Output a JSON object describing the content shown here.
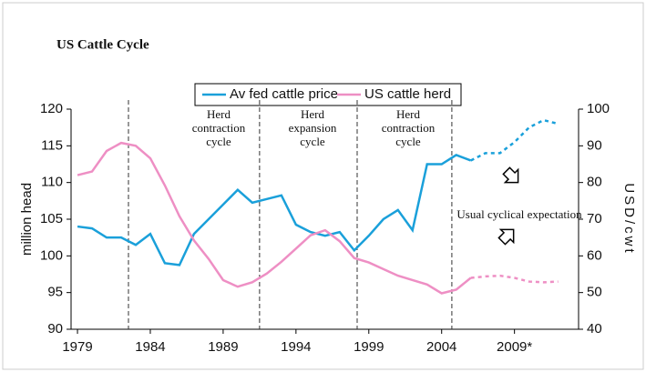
{
  "chart_data": {
    "type": "line",
    "title": "US Cattle Cycle",
    "x": [
      1979,
      1980,
      1981,
      1982,
      1983,
      1984,
      1985,
      1986,
      1987,
      1988,
      1989,
      1990,
      1991,
      1992,
      1993,
      1994,
      1995,
      1996,
      1997,
      1998,
      1999,
      2000,
      2001,
      2002,
      2003,
      2004,
      2005,
      2006,
      2007,
      2008,
      2009,
      2010,
      2011,
      2012
    ],
    "series": [
      {
        "name": "Av fed cattle price",
        "color": "#1aa0da",
        "axis": "y2",
        "dashed_from": 2006,
        "values": [
          68,
          67.5,
          65,
          65,
          63,
          66,
          58,
          57.5,
          66,
          70,
          74,
          78,
          74.5,
          75.5,
          76.5,
          68.5,
          66.5,
          65.5,
          66.5,
          61.5,
          65.5,
          70,
          72.5,
          67,
          85,
          85,
          87.5,
          86,
          88,
          88,
          91,
          95,
          97,
          96
        ]
      },
      {
        "name": "US cattle herd",
        "color": "#ee8fc4",
        "dashed_from": 2006,
        "values": [
          111,
          111.5,
          114.3,
          115.4,
          115,
          113.3,
          109.6,
          105.4,
          102.1,
          99.6,
          96.7,
          95.8,
          96.4,
          97.6,
          99.2,
          101,
          102.8,
          103.5,
          102,
          99.7,
          99.1,
          98.2,
          97.3,
          96.7,
          96.1,
          94.9,
          95.4,
          97.0,
          97.2,
          97.3,
          97.0,
          96.5,
          96.4,
          96.5
        ]
      }
    ],
    "xlim": [
      1978.56,
      2013.4
    ],
    "xticks": [
      1979,
      1984,
      1989,
      1994,
      1999,
      2004,
      {
        "value": 2009,
        "label": "2009*"
      }
    ],
    "ylim": [
      90,
      120
    ],
    "yticks": [
      90,
      95,
      100,
      105,
      110,
      115,
      120
    ],
    "y2lim": [
      40,
      100
    ],
    "y2ticks": [
      40,
      50,
      60,
      70,
      80,
      90,
      100
    ],
    "ylabel": "million head",
    "y2label": "USD/cwt",
    "reference_lines": [
      1982.5,
      1991.5,
      1998.2,
      2004.7
    ],
    "annotations": [
      {
        "lines": [
          "Herd",
          "contraction",
          "cycle"
        ]
      },
      {
        "lines": [
          "Herd",
          "expansion",
          "cycle"
        ]
      },
      {
        "lines": [
          "Herd",
          "contraction",
          "cycle"
        ]
      },
      {
        "lines": [
          "Usual cyclical expectation"
        ]
      }
    ]
  }
}
